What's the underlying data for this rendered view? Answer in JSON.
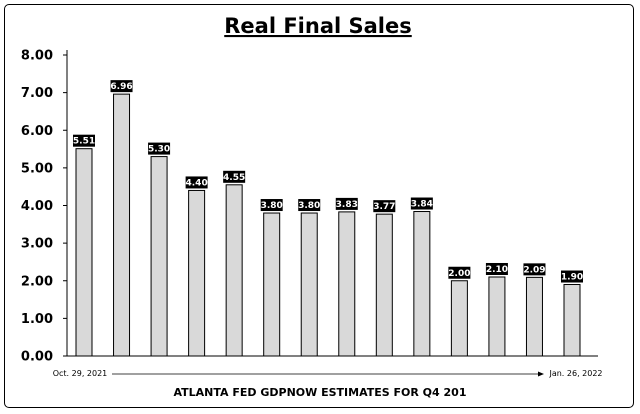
{
  "chart_data": {
    "type": "bar",
    "title": "Real Final Sales",
    "values": [
      5.51,
      6.96,
      5.3,
      4.4,
      4.55,
      3.8,
      3.8,
      3.83,
      3.77,
      3.84,
      2.0,
      2.1,
      2.09,
      1.9
    ],
    "data_labels": [
      "5.51",
      "6.96",
      "5.30",
      "4.40",
      "4.55",
      "3.80",
      "3.80",
      "3.83",
      "3.77",
      "3.84",
      "2.00",
      "2.10",
      "2.09",
      "1.90"
    ],
    "yticks": [
      "0.00",
      "1.00",
      "2.00",
      "3.00",
      "4.00",
      "5.00",
      "6.00",
      "7.00",
      "8.00"
    ],
    "ylim": [
      0,
      8
    ],
    "start_date": "Oct. 29, 2021",
    "end_date": "Jan. 26, 2022",
    "xlabel": "ATLANTA FED GDPNOW ESTIMATES FOR Q4 201",
    "grid": false,
    "legend": "none",
    "colors": {
      "bar_fill": "#d9d9d9",
      "bar_stroke": "#000000",
      "label_bg": "#000000",
      "label_text": "#ffffff"
    }
  }
}
